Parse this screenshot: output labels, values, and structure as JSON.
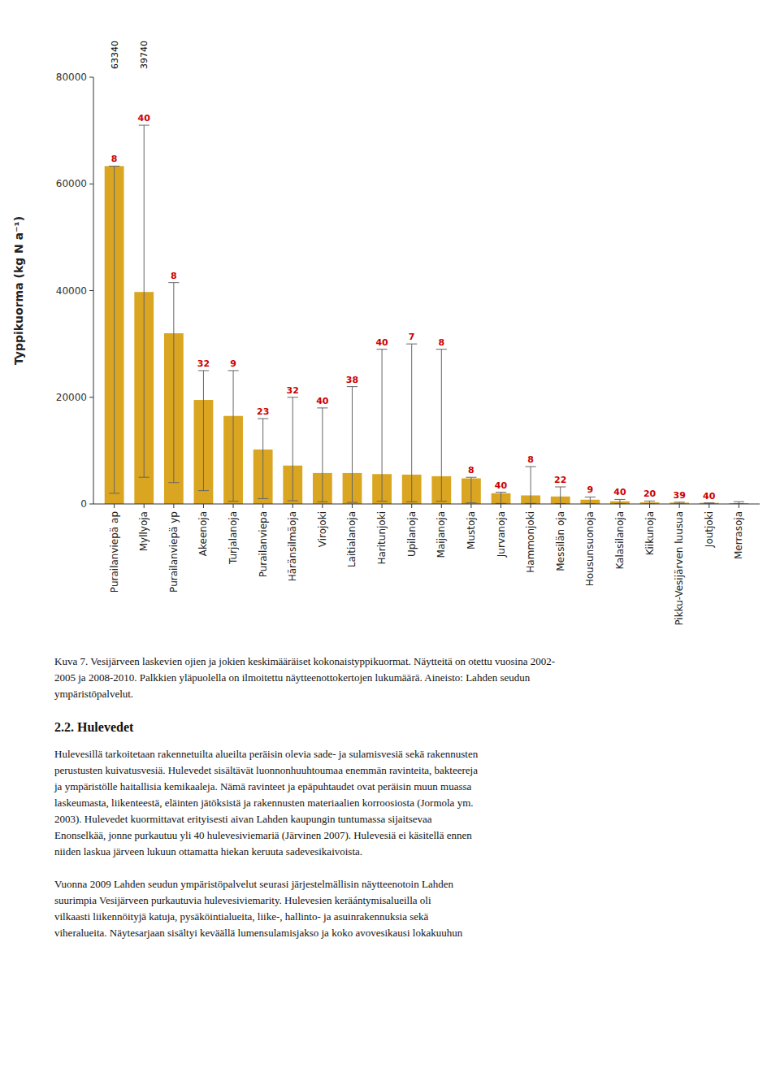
{
  "chart_data": {
    "type": "bar",
    "categories": [
      "Purailanviepä ap",
      "Myllyoja",
      "Purailanviepä yp",
      "Akeenoja",
      "Turjalanoja",
      "Purailanviepa",
      "Häränsilmäoja",
      "Virojoki",
      "Laitialanoja",
      "Haritunjoki",
      "Upilanoja",
      "Maijanoja",
      "Mustoja",
      "Jurvanoja",
      "Hammonjoki",
      "Messilän oja",
      "Housunsuonoja",
      "Kalasilanoja",
      "Kiikunoja",
      "Pikku-Vesijärven luusua",
      "Joutjoki",
      "Merrasoja"
    ],
    "values": [
      63340,
      39740,
      32000,
      19500,
      16500,
      10200,
      7200,
      5800,
      5800,
      5600,
      5500,
      5200,
      4800,
      2000,
      1600,
      1400,
      800,
      500,
      300,
      250,
      200,
      150
    ],
    "error_low": [
      2000,
      5000,
      4000,
      2500,
      500,
      1000,
      600,
      400,
      300,
      500,
      400,
      500,
      200,
      100,
      100,
      80,
      40,
      20,
      10,
      10,
      10,
      10
    ],
    "error_high": [
      63340,
      71000,
      41500,
      25000,
      25000,
      16000,
      20000,
      18000,
      22000,
      29000,
      30000,
      29000,
      5000,
      2200,
      7000,
      3200,
      1300,
      850,
      550,
      330,
      200,
      420
    ],
    "color": "#DAA520",
    "sample_counts": {
      "color": "#CC0000",
      "labels": [
        "8",
        "40",
        "8",
        "32",
        "9",
        "23",
        "32",
        "40",
        "38",
        "40",
        "7",
        "8",
        "8",
        "40",
        "8",
        "22",
        "9",
        "40",
        "20",
        "39",
        "40",
        null
      ]
    },
    "annotations": [
      {
        "text": "63340",
        "category": "Purailanviepä ap"
      },
      {
        "text": "39740",
        "category": "Myllyoja"
      }
    ],
    "ylabel": "Typpikuorma (kg N a⁻¹)",
    "ylim": [
      0,
      80000
    ],
    "yticks": [
      0,
      20000,
      40000,
      60000,
      80000
    ],
    "grid": false
  },
  "caption_lines": [
    "Kuva 7. Vesijärveen laskevien ojien ja jokien keskimääräiset kokonaistyppikuormat. Näytteitä on otettu vuosina 2002-",
    "2005 ja 2008-2010. Palkkien yläpuolella on ilmoitettu näytteenottokertojen lukumäärä. Aineisto: Lahden seudun",
    "ympäristöpalvelut."
  ],
  "section_title": "2.2. Hulevedet",
  "body_paragraphs": [
    [
      "Hulevesillä tarkoitetaan rakennetuilta alueilta peräisin olevia sade- ja sulamisvesiä sekä rakennusten",
      "perustusten kuivatusvesiä. Hulevedet sisältävät luonnonhuuhtoumaa enemmän ravinteita, bakteereja",
      "ja ympäristölle haitallisia kemikaaleja. Nämä ravinteet ja epäpuhtaudet ovat peräisin muun muassa",
      "laskeumasta, liikenteestä, eläinten jätöksistä ja rakennusten materiaalien korroosiosta (Jormola ym.",
      "2003). Hulevedet kuormittavat erityisesti aivan Lahden kaupungin tuntumassa sijaitsevaa",
      "Enonselkää, jonne purkautuu yli 40 hulevesiviemariä (Järvinen 2007). Hulevesiä ei käsitellä ennen",
      "niiden laskua järveen lukuun ottamatta hiekan keruuta sadevesikaivoista."
    ],
    [
      "Vuonna 2009 Lahden seudun ympäristöpalvelut seurasi järjestelmällisin näytteenotoin Lahden",
      "suurimpia Vesijärveen purkautuvia hulevesiviemarity. Hulevesien keräántymisalueilla oli",
      "vilkaasti liikennöityjä katuja, pysäköintialueita, liike-, hallinto- ja asuinrakennuksia sekä",
      "viheralueita. Näytesarjaan sisältyi keväällä lumensulamisjakso ja koko avovesikausi lokakuuhun"
    ]
  ]
}
